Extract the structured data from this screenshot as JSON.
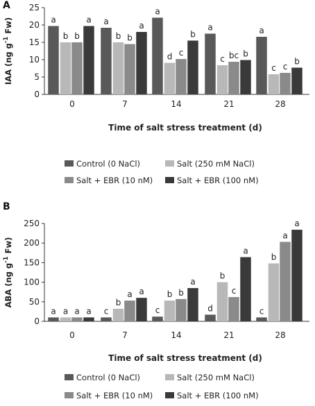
{
  "chart_data": [
    {
      "panel": "A",
      "type": "bar",
      "categories": [
        "0",
        "7",
        "14",
        "21",
        "28"
      ],
      "ylabel": "IAA (ng g-1 Fw)",
      "ylabel_parts": [
        "IAA (ng g",
        "-1",
        " Fw)"
      ],
      "xlabel": "Time of salt stress treatment (d)",
      "ylim": [
        0,
        25
      ],
      "yticks": [
        "0",
        "5",
        "10",
        "15",
        "20",
        "25"
      ],
      "grid": false,
      "legend_position": "bottom",
      "series": [
        {
          "name": "Control (0 NaCl)",
          "color": "#595959",
          "values": [
            19.7,
            19.2,
            22.1,
            17.5,
            16.6
          ],
          "labels": [
            "a",
            "a",
            "a",
            "a",
            "a"
          ]
        },
        {
          "name": "Salt (250 mM NaCl)",
          "color": "#b8b8b8",
          "values": [
            15.0,
            15.0,
            9.1,
            8.4,
            5.8
          ],
          "labels": [
            "b",
            "b",
            "d",
            "c",
            "c"
          ]
        },
        {
          "name": "Salt + EBR (10 nM)",
          "color": "#8a8a8a",
          "values": [
            15.0,
            14.5,
            10.2,
            9.4,
            6.2
          ],
          "labels": [
            "b",
            "b",
            "c",
            "bc",
            "c"
          ]
        },
        {
          "name": "Salt + EBR (100 nM)",
          "color": "#3a3a3a",
          "values": [
            19.7,
            18.0,
            15.5,
            9.9,
            7.7
          ],
          "labels": [
            "a",
            "a",
            "b",
            "b",
            "b"
          ]
        }
      ]
    },
    {
      "panel": "B",
      "type": "bar",
      "categories": [
        "0",
        "7",
        "14",
        "21",
        "28"
      ],
      "ylabel": "ABA (ng g-1 Fw)",
      "ylabel_parts": [
        "ABA (ng g",
        "-1",
        " Fw)"
      ],
      "xlabel": "Time of salt stress treatment (d)",
      "ylim": [
        0,
        250
      ],
      "yticks": [
        "0",
        "50",
        "100",
        "150",
        "200",
        "250"
      ],
      "grid": false,
      "legend_position": "bottom",
      "series": [
        {
          "name": "Control (0 NaCl)",
          "color": "#595959",
          "values": [
            10,
            10,
            12,
            17,
            10
          ],
          "labels": [
            "a",
            "c",
            "c",
            "d",
            "c"
          ]
        },
        {
          "name": "Salt (250 mM NaCl)",
          "color": "#b8b8b8",
          "values": [
            10,
            32,
            53,
            100,
            148
          ],
          "labels": [
            "a",
            "b",
            "b",
            "b",
            "b"
          ]
        },
        {
          "name": "Salt + EBR (10 nM)",
          "color": "#8a8a8a",
          "values": [
            10,
            53,
            57,
            62,
            203
          ],
          "labels": [
            "a",
            "a",
            "b",
            "c",
            "a"
          ]
        },
        {
          "name": "Salt + EBR (100 nM)",
          "color": "#3a3a3a",
          "values": [
            10,
            60,
            85,
            164,
            234
          ],
          "labels": [
            "a",
            "a",
            "a",
            "a",
            "a"
          ]
        }
      ]
    }
  ]
}
